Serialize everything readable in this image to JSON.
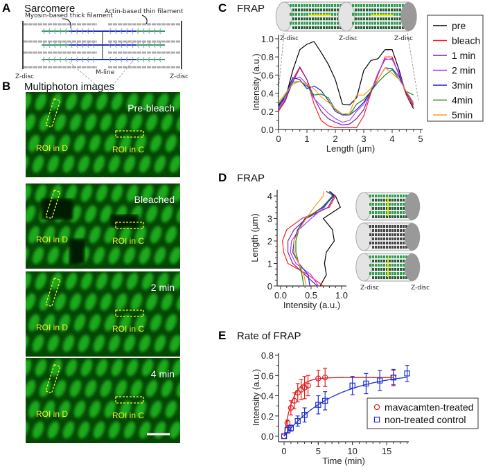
{
  "panels": {
    "A": {
      "letter": "A",
      "title": "Sarcomere",
      "thick_label": "Myosin-based thick filament",
      "thin_label": "Actin-based thin filament",
      "mline_label": "M-line",
      "zdisc_left": "Z-disc",
      "zdisc_right": "Z-disc"
    },
    "B": {
      "letter": "B",
      "title": "Multiphoton images",
      "images": [
        {
          "label": "Pre-bleach",
          "roi_d": "ROI in D",
          "roi_c": "ROI in C",
          "bleached": false
        },
        {
          "label": "Bleached",
          "roi_d": "ROI in D",
          "roi_c": "ROI in C",
          "bleached": true
        },
        {
          "label": "2 min",
          "roi_d": "ROI in D",
          "roi_c": "ROI in C",
          "bleached": false
        },
        {
          "label": "4 min",
          "roi_d": "ROI in D",
          "roi_c": "ROI in C",
          "bleached": false
        }
      ],
      "colors": {
        "fluorescence": "#2fd02f",
        "roi": "#f2f230"
      }
    },
    "C": {
      "letter": "C",
      "title": "FRAP",
      "zdisc_labels": [
        "Z-disc",
        "Z-disc",
        "Z-disc"
      ]
    },
    "D": {
      "letter": "D",
      "title": "FRAP",
      "zdisc_left": "Z-disc",
      "zdisc_right": "Z-disc"
    },
    "E": {
      "letter": "E",
      "title": "Rate of FRAP"
    }
  },
  "chart_data": [
    {
      "id": "C",
      "type": "line",
      "xlabel": "Length (µm)",
      "ylabel": "Intensity (a.u.)",
      "xlim": [
        0,
        5
      ],
      "ylim": [
        0,
        1.0
      ],
      "xticks": [
        0,
        1,
        2,
        3,
        4,
        5
      ],
      "yticks": [
        "0.0",
        "0.2",
        "0.4",
        "0.6",
        "0.8",
        "1.0"
      ],
      "grid": false,
      "legend": "right",
      "x": [
        0,
        0.25,
        0.5,
        0.75,
        1.0,
        1.25,
        1.5,
        1.75,
        2.0,
        2.25,
        2.5,
        2.75,
        3.0,
        3.25,
        3.5,
        3.75,
        4.0,
        4.25,
        4.5,
        4.75
      ],
      "series": [
        {
          "name": "pre",
          "color": "#000000",
          "values": [
            0.27,
            0.35,
            0.65,
            0.88,
            0.94,
            0.97,
            0.85,
            0.72,
            0.55,
            0.28,
            0.27,
            0.35,
            0.65,
            0.76,
            0.78,
            0.88,
            0.88,
            0.65,
            0.38,
            0.23
          ]
        },
        {
          "name": "bleach",
          "color": "#ff2020",
          "values": [
            0.2,
            0.32,
            0.55,
            0.69,
            0.55,
            0.28,
            0.1,
            0.04,
            0.02,
            0.02,
            0.02,
            0.02,
            0.15,
            0.4,
            0.6,
            0.8,
            0.8,
            0.6,
            0.38,
            0.25
          ]
        },
        {
          "name": "1 min",
          "color": "#7a1fa0",
          "values": [
            0.22,
            0.33,
            0.52,
            0.68,
            0.55,
            0.35,
            0.2,
            0.12,
            0.08,
            0.05,
            0.06,
            0.12,
            0.22,
            0.42,
            0.62,
            0.77,
            0.78,
            0.6,
            0.4,
            0.27
          ]
        },
        {
          "name": "2 min",
          "color": "#b040ff",
          "values": [
            0.24,
            0.35,
            0.55,
            0.58,
            0.5,
            0.34,
            0.26,
            0.18,
            0.12,
            0.08,
            0.1,
            0.2,
            0.28,
            0.42,
            0.62,
            0.78,
            0.77,
            0.62,
            0.4,
            0.28
          ]
        },
        {
          "name": "3min",
          "color": "#2020d0",
          "values": [
            0.25,
            0.38,
            0.57,
            0.55,
            0.45,
            0.48,
            0.43,
            0.32,
            0.2,
            0.16,
            0.16,
            0.22,
            0.3,
            0.42,
            0.55,
            0.68,
            0.67,
            0.58,
            0.4,
            0.3
          ]
        },
        {
          "name": "4min",
          "color": "#1a8a1a",
          "values": [
            0.28,
            0.38,
            0.52,
            0.53,
            0.48,
            0.38,
            0.39,
            0.35,
            0.22,
            0.17,
            0.16,
            0.28,
            0.33,
            0.42,
            0.52,
            0.6,
            0.66,
            0.55,
            0.42,
            0.38
          ]
        },
        {
          "name": "5min",
          "color": "#ff9a20",
          "values": [
            0.3,
            0.4,
            0.5,
            0.53,
            0.5,
            0.45,
            0.36,
            0.3,
            0.23,
            0.17,
            0.18,
            0.38,
            0.38,
            0.45,
            0.55,
            0.68,
            0.62,
            0.55,
            0.42,
            0.3
          ]
        }
      ]
    },
    {
      "id": "D",
      "type": "line",
      "xlabel": "Intensity (a.u.)",
      "ylabel": "Length (µm)",
      "xlim": [
        0,
        1.0
      ],
      "ylim": [
        0,
        4.2
      ],
      "xticks": [
        "0.0",
        "0.5",
        "1.0"
      ],
      "yticks": [
        0,
        1,
        2,
        3,
        4
      ],
      "grid": false,
      "length": [
        0,
        0.5,
        1.0,
        1.5,
        2.0,
        2.5,
        3.0,
        3.5,
        4.0,
        4.2
      ],
      "series": [
        {
          "name": "pre",
          "color": "#000000",
          "intensity": [
            0.65,
            0.75,
            0.72,
            0.75,
            0.88,
            0.85,
            0.7,
            0.98,
            0.9,
            0.8
          ]
        },
        {
          "name": "bleach",
          "color": "#ff2020",
          "intensity": [
            0.7,
            0.45,
            0.12,
            0.05,
            0.03,
            0.1,
            0.35,
            0.8,
            0.9,
            0.75
          ]
        },
        {
          "name": "1 min",
          "color": "#7a1fa0",
          "intensity": [
            0.6,
            0.4,
            0.2,
            0.12,
            0.12,
            0.22,
            0.42,
            0.78,
            0.88,
            0.75
          ]
        },
        {
          "name": "2 min",
          "color": "#b040ff",
          "intensity": [
            0.62,
            0.5,
            0.25,
            0.16,
            0.18,
            0.3,
            0.5,
            0.72,
            0.85,
            0.8
          ]
        },
        {
          "name": "3min",
          "color": "#2020d0",
          "intensity": [
            0.48,
            0.45,
            0.3,
            0.2,
            0.22,
            0.28,
            0.4,
            0.7,
            0.87,
            0.82
          ]
        },
        {
          "name": "4min",
          "color": "#1a8a1a",
          "intensity": [
            0.38,
            0.35,
            0.3,
            0.25,
            0.25,
            0.3,
            0.42,
            0.68,
            0.85,
            0.8
          ]
        },
        {
          "name": "5min",
          "color": "#ff9a20",
          "intensity": [
            0.42,
            0.38,
            0.3,
            0.22,
            0.22,
            0.3,
            0.42,
            0.55,
            0.7,
            0.7
          ]
        }
      ]
    },
    {
      "id": "E",
      "type": "scatter",
      "xlabel": "Time (min)",
      "ylabel": "Intensity (a.u.)",
      "xlim": [
        0,
        18
      ],
      "ylim": [
        0,
        0.8
      ],
      "xticks": [
        0,
        5,
        10,
        15
      ],
      "yticks": [
        "0.0",
        "0.2",
        "0.4",
        "0.6",
        "0.8"
      ],
      "grid": false,
      "legend": "bottom-right",
      "series": [
        {
          "name": "mavacamten-treated",
          "marker": "circle",
          "color": "#e02020",
          "x": [
            0,
            0.5,
            1,
            1.5,
            2,
            2.5,
            3,
            3.5,
            5,
            6,
            16
          ],
          "y": [
            0,
            0.13,
            0.28,
            0.35,
            0.43,
            0.46,
            0.48,
            0.5,
            0.57,
            0.58,
            0.58
          ],
          "error": [
            0,
            0.03,
            0.07,
            0.08,
            0.09,
            0.1,
            0.11,
            0.1,
            0.08,
            0.09,
            0.07
          ]
        },
        {
          "name": "non-treated control",
          "marker": "square",
          "color": "#2030d0",
          "x": [
            0,
            0.5,
            1,
            2,
            3,
            5,
            6,
            10,
            12,
            14,
            16,
            18
          ],
          "y": [
            0,
            0.06,
            0.08,
            0.15,
            0.21,
            0.31,
            0.35,
            0.5,
            0.52,
            0.55,
            0.58,
            0.62
          ],
          "error": [
            0,
            0.03,
            0.03,
            0.05,
            0.07,
            0.09,
            0.09,
            0.09,
            0.1,
            0.1,
            0.08,
            0.08
          ]
        }
      ]
    }
  ]
}
